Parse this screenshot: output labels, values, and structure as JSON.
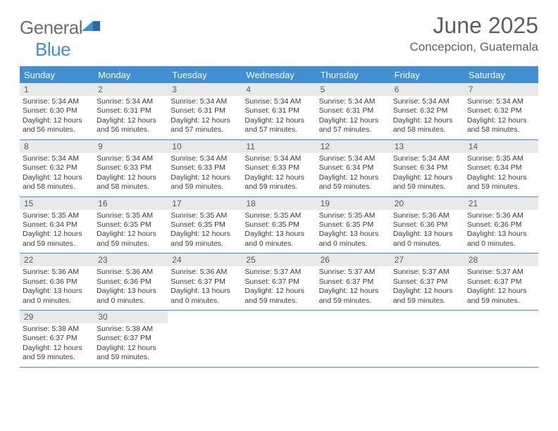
{
  "brand": {
    "word1": "General",
    "word2": "Blue"
  },
  "title": "June 2025",
  "location": "Concepcion, Guatemala",
  "colors": {
    "accent": "#3f8fd2",
    "daynum_bg": "#e9e9e9",
    "text": "#3a3a3a",
    "muted": "#5f5f5f",
    "white": "#ffffff"
  },
  "days_of_week": [
    "Sunday",
    "Monday",
    "Tuesday",
    "Wednesday",
    "Thursday",
    "Friday",
    "Saturday"
  ],
  "weeks": [
    [
      {
        "n": "1",
        "sr": "Sunrise: 5:34 AM",
        "ss": "Sunset: 6:30 PM",
        "d1": "Daylight: 12 hours",
        "d2": "and 56 minutes."
      },
      {
        "n": "2",
        "sr": "Sunrise: 5:34 AM",
        "ss": "Sunset: 6:31 PM",
        "d1": "Daylight: 12 hours",
        "d2": "and 56 minutes."
      },
      {
        "n": "3",
        "sr": "Sunrise: 5:34 AM",
        "ss": "Sunset: 6:31 PM",
        "d1": "Daylight: 12 hours",
        "d2": "and 57 minutes."
      },
      {
        "n": "4",
        "sr": "Sunrise: 5:34 AM",
        "ss": "Sunset: 6:31 PM",
        "d1": "Daylight: 12 hours",
        "d2": "and 57 minutes."
      },
      {
        "n": "5",
        "sr": "Sunrise: 5:34 AM",
        "ss": "Sunset: 6:31 PM",
        "d1": "Daylight: 12 hours",
        "d2": "and 57 minutes."
      },
      {
        "n": "6",
        "sr": "Sunrise: 5:34 AM",
        "ss": "Sunset: 6:32 PM",
        "d1": "Daylight: 12 hours",
        "d2": "and 58 minutes."
      },
      {
        "n": "7",
        "sr": "Sunrise: 5:34 AM",
        "ss": "Sunset: 6:32 PM",
        "d1": "Daylight: 12 hours",
        "d2": "and 58 minutes."
      }
    ],
    [
      {
        "n": "8",
        "sr": "Sunrise: 5:34 AM",
        "ss": "Sunset: 6:32 PM",
        "d1": "Daylight: 12 hours",
        "d2": "and 58 minutes."
      },
      {
        "n": "9",
        "sr": "Sunrise: 5:34 AM",
        "ss": "Sunset: 6:33 PM",
        "d1": "Daylight: 12 hours",
        "d2": "and 58 minutes."
      },
      {
        "n": "10",
        "sr": "Sunrise: 5:34 AM",
        "ss": "Sunset: 6:33 PM",
        "d1": "Daylight: 12 hours",
        "d2": "and 59 minutes."
      },
      {
        "n": "11",
        "sr": "Sunrise: 5:34 AM",
        "ss": "Sunset: 6:33 PM",
        "d1": "Daylight: 12 hours",
        "d2": "and 59 minutes."
      },
      {
        "n": "12",
        "sr": "Sunrise: 5:34 AM",
        "ss": "Sunset: 6:34 PM",
        "d1": "Daylight: 12 hours",
        "d2": "and 59 minutes."
      },
      {
        "n": "13",
        "sr": "Sunrise: 5:34 AM",
        "ss": "Sunset: 6:34 PM",
        "d1": "Daylight: 12 hours",
        "d2": "and 59 minutes."
      },
      {
        "n": "14",
        "sr": "Sunrise: 5:35 AM",
        "ss": "Sunset: 6:34 PM",
        "d1": "Daylight: 12 hours",
        "d2": "and 59 minutes."
      }
    ],
    [
      {
        "n": "15",
        "sr": "Sunrise: 5:35 AM",
        "ss": "Sunset: 6:34 PM",
        "d1": "Daylight: 12 hours",
        "d2": "and 59 minutes."
      },
      {
        "n": "16",
        "sr": "Sunrise: 5:35 AM",
        "ss": "Sunset: 6:35 PM",
        "d1": "Daylight: 12 hours",
        "d2": "and 59 minutes."
      },
      {
        "n": "17",
        "sr": "Sunrise: 5:35 AM",
        "ss": "Sunset: 6:35 PM",
        "d1": "Daylight: 12 hours",
        "d2": "and 59 minutes."
      },
      {
        "n": "18",
        "sr": "Sunrise: 5:35 AM",
        "ss": "Sunset: 6:35 PM",
        "d1": "Daylight: 13 hours",
        "d2": "and 0 minutes."
      },
      {
        "n": "19",
        "sr": "Sunrise: 5:35 AM",
        "ss": "Sunset: 6:35 PM",
        "d1": "Daylight: 13 hours",
        "d2": "and 0 minutes."
      },
      {
        "n": "20",
        "sr": "Sunrise: 5:36 AM",
        "ss": "Sunset: 6:36 PM",
        "d1": "Daylight: 13 hours",
        "d2": "and 0 minutes."
      },
      {
        "n": "21",
        "sr": "Sunrise: 5:36 AM",
        "ss": "Sunset: 6:36 PM",
        "d1": "Daylight: 13 hours",
        "d2": "and 0 minutes."
      }
    ],
    [
      {
        "n": "22",
        "sr": "Sunrise: 5:36 AM",
        "ss": "Sunset: 6:36 PM",
        "d1": "Daylight: 13 hours",
        "d2": "and 0 minutes."
      },
      {
        "n": "23",
        "sr": "Sunrise: 5:36 AM",
        "ss": "Sunset: 6:36 PM",
        "d1": "Daylight: 13 hours",
        "d2": "and 0 minutes."
      },
      {
        "n": "24",
        "sr": "Sunrise: 5:36 AM",
        "ss": "Sunset: 6:37 PM",
        "d1": "Daylight: 13 hours",
        "d2": "and 0 minutes."
      },
      {
        "n": "25",
        "sr": "Sunrise: 5:37 AM",
        "ss": "Sunset: 6:37 PM",
        "d1": "Daylight: 12 hours",
        "d2": "and 59 minutes."
      },
      {
        "n": "26",
        "sr": "Sunrise: 5:37 AM",
        "ss": "Sunset: 6:37 PM",
        "d1": "Daylight: 12 hours",
        "d2": "and 59 minutes."
      },
      {
        "n": "27",
        "sr": "Sunrise: 5:37 AM",
        "ss": "Sunset: 6:37 PM",
        "d1": "Daylight: 12 hours",
        "d2": "and 59 minutes."
      },
      {
        "n": "28",
        "sr": "Sunrise: 5:37 AM",
        "ss": "Sunset: 6:37 PM",
        "d1": "Daylight: 12 hours",
        "d2": "and 59 minutes."
      }
    ],
    [
      {
        "n": "29",
        "sr": "Sunrise: 5:38 AM",
        "ss": "Sunset: 6:37 PM",
        "d1": "Daylight: 12 hours",
        "d2": "and 59 minutes."
      },
      {
        "n": "30",
        "sr": "Sunrise: 5:38 AM",
        "ss": "Sunset: 6:37 PM",
        "d1": "Daylight: 12 hours",
        "d2": "and 59 minutes."
      },
      null,
      null,
      null,
      null,
      null
    ]
  ]
}
